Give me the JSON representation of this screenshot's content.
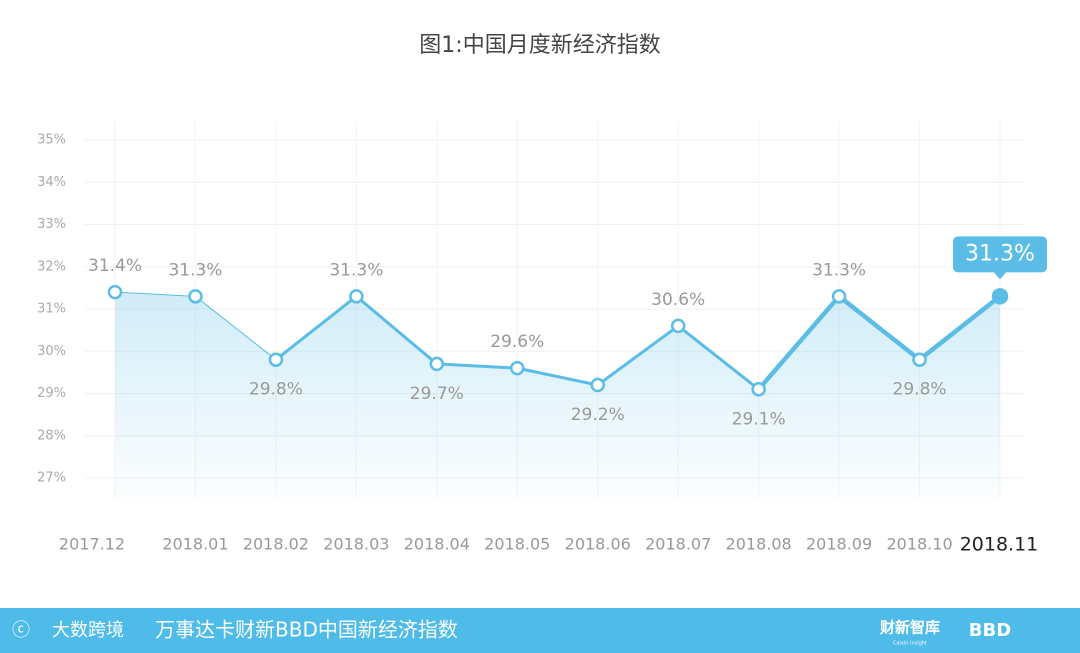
{
  "chart_data": {
    "type": "line",
    "title": "图1:中国月度新经济指数",
    "categories": [
      "2017.12",
      "2018.01",
      "2018.02",
      "2018.03",
      "2018.04",
      "2018.05",
      "2018.06",
      "2018.07",
      "2018.08",
      "2018.09",
      "2018.10",
      "2018.11"
    ],
    "values": [
      31.4,
      31.3,
      29.8,
      31.3,
      29.7,
      29.6,
      29.2,
      30.6,
      29.1,
      31.3,
      29.8,
      31.3
    ],
    "value_labels": [
      "31.4%",
      "31.3%",
      "29.8%",
      "31.3%",
      "29.7%",
      "29.6%",
      "29.2%",
      "30.6%",
      "29.1%",
      "31.3%",
      "29.8%",
      "31.3%"
    ],
    "color": "#5bbde6",
    "ylim": [
      27,
      35
    ],
    "yticks": [
      {
        "value": 27,
        "label": "27%"
      },
      {
        "value": 28,
        "label": "28%"
      },
      {
        "value": 29,
        "label": "29%"
      },
      {
        "value": 30,
        "label": "30%"
      },
      {
        "value": 31,
        "label": "31%"
      },
      {
        "value": 32,
        "label": "32%"
      },
      {
        "value": 33,
        "label": "33%"
      },
      {
        "value": 34,
        "label": "34%"
      },
      {
        "value": 35,
        "label": "35%"
      }
    ],
    "grid": true
  },
  "footer": {
    "logo": "大数跨境",
    "caption": "万事达卡财新BBD中国新经济指数",
    "brand1": "财新智库",
    "brand1_sub": "Caixin Insight",
    "brand2": "BBD"
  }
}
